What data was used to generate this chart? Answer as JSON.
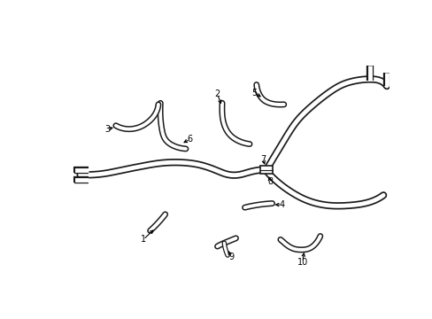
{
  "bg_color": "#ffffff",
  "line_color": "#1a1a1a",
  "fig_width": 4.89,
  "fig_height": 3.6,
  "dpi": 100,
  "outer_lw": 6.0,
  "inner_lw": 3.5,
  "small_outer_lw": 5.0,
  "small_inner_lw": 2.8
}
